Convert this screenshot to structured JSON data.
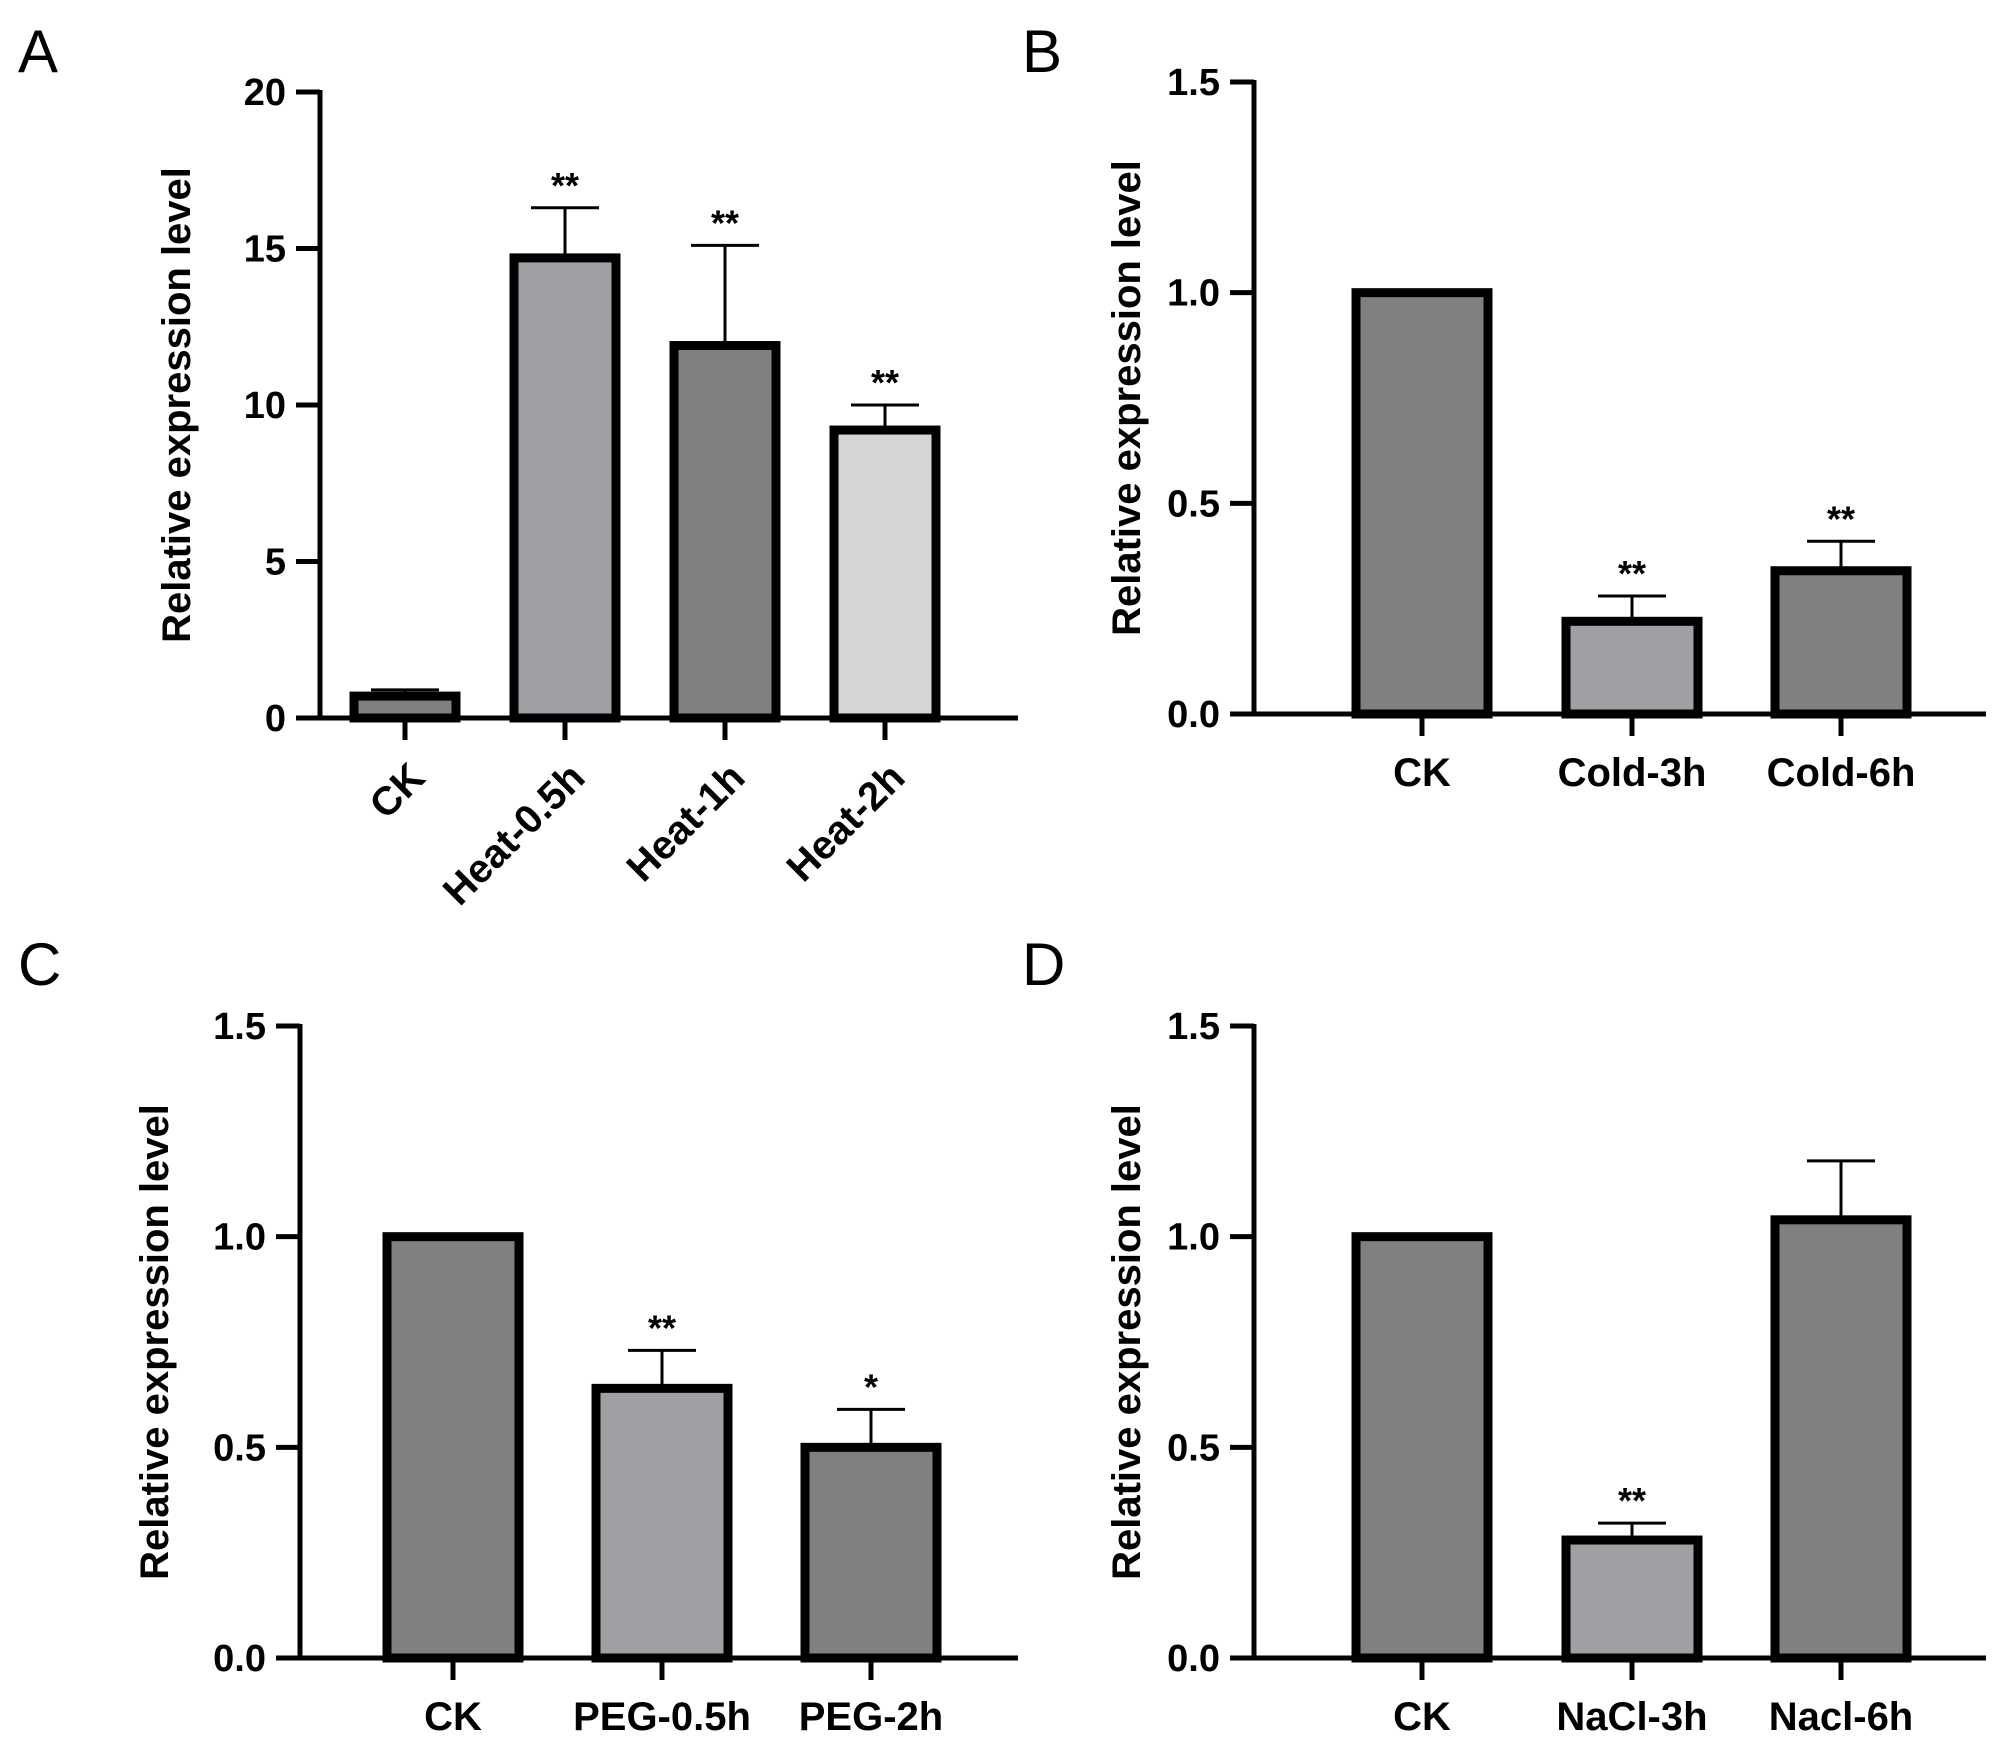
{
  "chart_data": [
    {
      "panel": "A",
      "type": "bar",
      "ylabel": "Relative expression level",
      "ylim": [
        0,
        20
      ],
      "yticks": [
        "0",
        "5",
        "10",
        "15",
        "20"
      ],
      "categories": [
        "CK",
        "Heat-0.5h",
        "Heat-1h",
        "Heat-2h"
      ],
      "values": [
        0.7,
        14.7,
        11.9,
        9.2
      ],
      "errors": [
        0.2,
        1.6,
        3.2,
        0.8
      ],
      "significance": [
        "",
        "**",
        "**",
        "**"
      ],
      "colors": [
        "#808080",
        "#a0a0a4",
        "#808080",
        "#d4d6d4"
      ],
      "rotated_labels": true
    },
    {
      "panel": "B",
      "type": "bar",
      "ylabel": "Relative expression level",
      "ylim": [
        0,
        1.5
      ],
      "yticks": [
        "0.0",
        "0.5",
        "1.0",
        "1.5"
      ],
      "categories": [
        "CK",
        "Cold-3h",
        "Cold-6h"
      ],
      "values": [
        1.0,
        0.22,
        0.34
      ],
      "errors": [
        0.005,
        0.06,
        0.07
      ],
      "significance": [
        "",
        "**",
        "**"
      ],
      "colors": [
        "#808080",
        "#a0a0a4",
        "#808080"
      ],
      "rotated_labels": false
    },
    {
      "panel": "C",
      "type": "bar",
      "ylabel": "Relative expression level",
      "ylim": [
        0,
        1.5
      ],
      "yticks": [
        "0.0",
        "0.5",
        "1.0",
        "1.5"
      ],
      "categories": [
        "CK",
        "PEG-0.5h",
        "PEG-2h"
      ],
      "values": [
        1.0,
        0.64,
        0.5
      ],
      "errors": [
        0.005,
        0.09,
        0.09
      ],
      "significance": [
        "",
        "**",
        "*"
      ],
      "colors": [
        "#808080",
        "#a0a0a4",
        "#808080"
      ],
      "rotated_labels": false
    },
    {
      "panel": "D",
      "type": "bar",
      "ylabel": "Relative expression level",
      "ylim": [
        0,
        1.5
      ],
      "yticks": [
        "0.0",
        "0.5",
        "1.0",
        "1.5"
      ],
      "categories": [
        "CK",
        "NaCl-3h",
        "Nacl-6h"
      ],
      "values": [
        1.0,
        0.28,
        1.04
      ],
      "errors": [
        0.005,
        0.04,
        0.14
      ],
      "significance": [
        "",
        "**",
        ""
      ],
      "colors": [
        "#808080",
        "#a0a0a4",
        "#808080"
      ],
      "rotated_labels": false
    }
  ]
}
